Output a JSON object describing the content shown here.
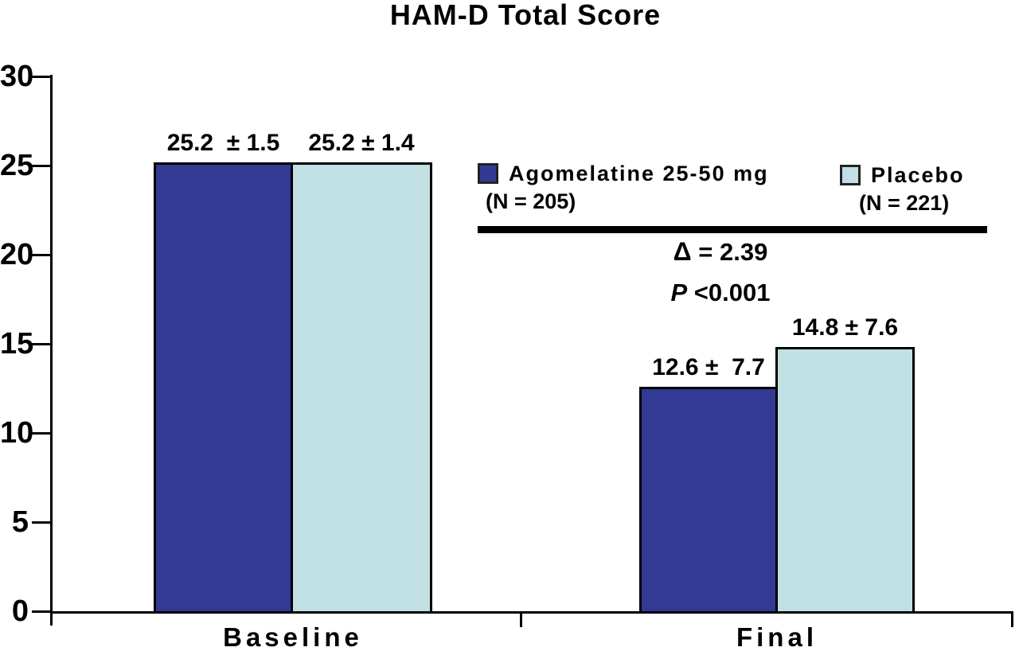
{
  "title": "HAM-D Total Score",
  "legend": {
    "agomelatine": {
      "label": "Agomelatine 25-50 mg",
      "n_label": "(N = 205)",
      "color": "#333A94"
    },
    "placebo": {
      "label": "Placebo",
      "n_label": "(N = 221)",
      "color": "#C0E0E3"
    }
  },
  "annotation": {
    "delta_symbol": "Δ",
    "delta_rest": " = 2.39",
    "p_symbol": "P",
    "p_rest": " <0.001"
  },
  "chart_data": {
    "type": "bar",
    "title": "HAM-D Total Score",
    "categories": [
      "Baseline",
      "Final"
    ],
    "series": [
      {
        "name": "Agomelatine 25-50 mg",
        "n": "(N = 205)",
        "color": "#333A94",
        "values": [
          25.2,
          12.6
        ],
        "sd": [
          1.5,
          7.7
        ],
        "labels": [
          "25.2  ± 1.5",
          "12.6 ±  7.7"
        ]
      },
      {
        "name": "Placebo",
        "n": "(N = 221)",
        "color": "#C0E0E3",
        "values": [
          25.2,
          14.8
        ],
        "sd": [
          1.4,
          7.6
        ],
        "labels": [
          "25.2 ± 1.4",
          "14.8 ± 7.6"
        ]
      }
    ],
    "ylim": [
      0,
      30
    ],
    "yticks": [
      0,
      5,
      10,
      15,
      20,
      25,
      30
    ],
    "grid": false,
    "legend_position": "top-right",
    "annotations": [
      "Δ = 2.39",
      "P <0.001"
    ]
  }
}
